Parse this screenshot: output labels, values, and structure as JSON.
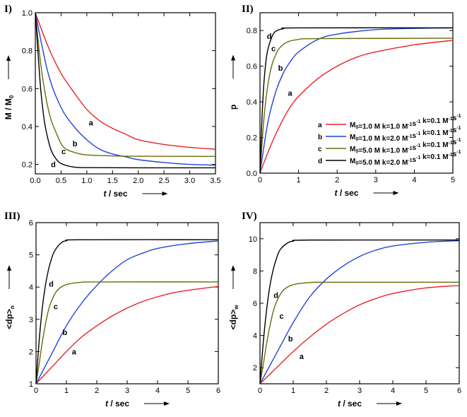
{
  "colors": {
    "a": "#e8232a",
    "b": "#1f45d6",
    "c": "#6b6b0a",
    "d": "#000000",
    "axis": "#000000"
  },
  "chart_data": [
    {
      "panel": "I)",
      "type": "line",
      "xlabel": "t / sec",
      "ylabel": "M / M0",
      "xlim": [
        0,
        3.5
      ],
      "ylim": [
        0.15,
        1.0
      ],
      "xticks": [
        "0.0",
        "0.5",
        "1.0",
        "1.5",
        "2.0",
        "2.5",
        "3.0",
        "3.5"
      ],
      "xtick_values": [
        0,
        0.5,
        1.0,
        1.5,
        2.0,
        2.5,
        3.0,
        3.5
      ],
      "yticks": [
        "0.2",
        "0.4",
        "0.6",
        "0.8",
        "1.0"
      ],
      "ytick_values": [
        0.2,
        0.4,
        0.6,
        0.8,
        1.0
      ],
      "series": [
        {
          "name": "a",
          "x": [
            0,
            0.25,
            0.5,
            0.75,
            1.0,
            1.25,
            1.5,
            1.75,
            2.0,
            2.5,
            3.0,
            3.5
          ],
          "y": [
            1.0,
            0.82,
            0.68,
            0.58,
            0.49,
            0.43,
            0.39,
            0.36,
            0.33,
            0.305,
            0.29,
            0.28
          ]
        },
        {
          "name": "b",
          "x": [
            0,
            0.25,
            0.5,
            0.75,
            1.0,
            1.25,
            1.5,
            1.75,
            2.0,
            2.5,
            3.0,
            3.5
          ],
          "y": [
            1.0,
            0.68,
            0.5,
            0.4,
            0.33,
            0.28,
            0.255,
            0.24,
            0.225,
            0.21,
            0.2,
            0.196
          ]
        },
        {
          "name": "c",
          "x": [
            0,
            0.1,
            0.2,
            0.3,
            0.4,
            0.5,
            0.6,
            0.8,
            1.0,
            1.5,
            2.0,
            3.5
          ],
          "y": [
            1.0,
            0.74,
            0.56,
            0.44,
            0.37,
            0.31,
            0.28,
            0.26,
            0.25,
            0.245,
            0.243,
            0.242
          ]
        },
        {
          "name": "d",
          "x": [
            0,
            0.05,
            0.1,
            0.15,
            0.2,
            0.3,
            0.4,
            0.5,
            0.7,
            1.0,
            2.0,
            3.5
          ],
          "y": [
            1.0,
            0.8,
            0.61,
            0.48,
            0.39,
            0.28,
            0.23,
            0.205,
            0.188,
            0.183,
            0.182,
            0.182
          ]
        }
      ],
      "curve_labels": [
        {
          "name": "a",
          "x": 1.08,
          "y": 0.42
        },
        {
          "name": "b",
          "x": 0.77,
          "y": 0.31
        },
        {
          "name": "c",
          "x": 0.55,
          "y": 0.27
        },
        {
          "name": "d",
          "x": 0.35,
          "y": 0.2
        }
      ]
    },
    {
      "panel": "II)",
      "type": "line",
      "xlabel": "t / sec",
      "ylabel": "p",
      "xlim": [
        0,
        5
      ],
      "ylim": [
        0,
        0.9
      ],
      "xticks": [
        "0",
        "1",
        "2",
        "3",
        "4",
        "5"
      ],
      "xtick_values": [
        0,
        1,
        2,
        3,
        4,
        5
      ],
      "yticks": [
        "0.0",
        "0.2",
        "0.4",
        "0.6",
        "0.8"
      ],
      "ytick_values": [
        0,
        0.2,
        0.4,
        0.6,
        0.8
      ],
      "series": [
        {
          "name": "a",
          "x": [
            0,
            0.25,
            0.5,
            0.75,
            1.0,
            1.5,
            2.0,
            2.5,
            3.0,
            4.0,
            5.0
          ],
          "y": [
            0,
            0.14,
            0.26,
            0.36,
            0.43,
            0.53,
            0.6,
            0.65,
            0.68,
            0.72,
            0.745
          ]
        },
        {
          "name": "b",
          "x": [
            0,
            0.2,
            0.4,
            0.6,
            0.8,
            1.0,
            1.5,
            2.0,
            3.0,
            4.0,
            5.0
          ],
          "y": [
            0,
            0.28,
            0.45,
            0.56,
            0.63,
            0.68,
            0.75,
            0.78,
            0.805,
            0.812,
            0.815
          ]
        },
        {
          "name": "c",
          "x": [
            0,
            0.1,
            0.2,
            0.3,
            0.4,
            0.5,
            0.7,
            1.0,
            1.5,
            5.0
          ],
          "y": [
            0,
            0.3,
            0.49,
            0.6,
            0.66,
            0.7,
            0.735,
            0.75,
            0.755,
            0.757
          ]
        },
        {
          "name": "d",
          "x": [
            0,
            0.05,
            0.1,
            0.15,
            0.2,
            0.3,
            0.4,
            0.6,
            1.0,
            5.0
          ],
          "y": [
            0,
            0.3,
            0.5,
            0.62,
            0.69,
            0.76,
            0.795,
            0.81,
            0.815,
            0.815
          ]
        }
      ],
      "curve_labels": [
        {
          "name": "a",
          "x": 0.78,
          "y": 0.45
        },
        {
          "name": "b",
          "x": 0.53,
          "y": 0.59
        },
        {
          "name": "c",
          "x": 0.35,
          "y": 0.7
        },
        {
          "name": "d",
          "x": 0.24,
          "y": 0.77
        }
      ],
      "legend": {
        "position": "bottom-right",
        "entries": [
          {
            "name": "a",
            "text": "M0=1.0 M  k=1.0 M-1s-1 k=0.1 M-1s-1"
          },
          {
            "name": "b",
            "text": "M0=1.0 M  k=2.0 M-1s-1 k=0.1 M-1s-1"
          },
          {
            "name": "c",
            "text": "M0=5.0 M  k=1.0 M-1s-1 k=0.1 M-1s-1"
          },
          {
            "name": "d",
            "text": "M0=5.0 M  k=2.0 M-1s-1 k=0.1 M-1s-1"
          }
        ]
      }
    },
    {
      "panel": "III)",
      "type": "line",
      "xlabel": "t / sec",
      "ylabel": "<dp>n",
      "xlim": [
        0,
        6
      ],
      "ylim": [
        1,
        6
      ],
      "xticks": [
        "0",
        "1",
        "2",
        "3",
        "4",
        "5",
        "6"
      ],
      "xtick_values": [
        0,
        1,
        2,
        3,
        4,
        5,
        6
      ],
      "yticks": [
        "1",
        "2",
        "3",
        "4",
        "5",
        "6"
      ],
      "ytick_values": [
        1,
        2,
        3,
        4,
        5,
        6
      ],
      "series": [
        {
          "name": "a",
          "x": [
            0,
            0.5,
            1.0,
            1.5,
            2.0,
            2.5,
            3.0,
            3.5,
            4.0,
            4.5,
            5.0,
            6.0
          ],
          "y": [
            1.0,
            1.5,
            2.0,
            2.45,
            2.8,
            3.1,
            3.35,
            3.55,
            3.7,
            3.82,
            3.9,
            4.02
          ]
        },
        {
          "name": "b",
          "x": [
            0,
            0.5,
            1.0,
            1.5,
            2.0,
            2.5,
            3.0,
            3.5,
            4.0,
            5.0,
            6.0
          ],
          "y": [
            1.0,
            1.9,
            2.8,
            3.5,
            4.05,
            4.5,
            4.85,
            5.05,
            5.2,
            5.35,
            5.43
          ]
        },
        {
          "name": "c",
          "x": [
            0,
            0.1,
            0.2,
            0.3,
            0.4,
            0.5,
            0.7,
            1.0,
            1.5,
            2.0,
            6.0
          ],
          "y": [
            1.0,
            1.6,
            2.25,
            2.8,
            3.25,
            3.55,
            3.9,
            4.08,
            4.15,
            4.16,
            4.16
          ]
        },
        {
          "name": "d",
          "x": [
            0,
            0.1,
            0.2,
            0.3,
            0.4,
            0.5,
            0.6,
            0.8,
            1.0,
            1.5,
            6.0
          ],
          "y": [
            1.0,
            2.3,
            3.3,
            4.0,
            4.5,
            4.85,
            5.1,
            5.35,
            5.44,
            5.47,
            5.47
          ]
        }
      ],
      "curve_labels": [
        {
          "name": "a",
          "x": 1.25,
          "y": 2.0
        },
        {
          "name": "b",
          "x": 0.95,
          "y": 2.6
        },
        {
          "name": "c",
          "x": 0.65,
          "y": 3.4
        },
        {
          "name": "d",
          "x": 0.5,
          "y": 4.1
        }
      ]
    },
    {
      "panel": "IV)",
      "type": "line",
      "xlabel": "t / sec",
      "ylabel": "<dp>w",
      "xlim": [
        0,
        6
      ],
      "ylim": [
        1,
        11
      ],
      "xticks": [
        "0",
        "1",
        "2",
        "3",
        "4",
        "5",
        "6"
      ],
      "xtick_values": [
        0,
        1,
        2,
        3,
        4,
        5,
        6
      ],
      "yticks": [
        "2",
        "4",
        "6",
        "8",
        "10"
      ],
      "ytick_values": [
        2,
        4,
        6,
        8,
        10
      ],
      "series": [
        {
          "name": "a",
          "x": [
            0,
            0.5,
            1.0,
            1.5,
            2.0,
            2.5,
            3.0,
            3.5,
            4.0,
            5.0,
            6.0
          ],
          "y": [
            1.0,
            2.0,
            3.0,
            3.9,
            4.7,
            5.35,
            5.9,
            6.3,
            6.6,
            6.95,
            7.1
          ]
        },
        {
          "name": "b",
          "x": [
            0,
            0.5,
            1.0,
            1.5,
            2.0,
            2.5,
            3.0,
            3.5,
            4.0,
            5.0,
            6.0
          ],
          "y": [
            1.0,
            2.9,
            4.8,
            6.4,
            7.5,
            8.3,
            8.9,
            9.3,
            9.55,
            9.78,
            9.88
          ]
        },
        {
          "name": "c",
          "x": [
            0,
            0.1,
            0.2,
            0.3,
            0.4,
            0.5,
            0.7,
            1.0,
            1.5,
            2.0,
            6.0
          ],
          "y": [
            1.0,
            2.2,
            3.5,
            4.6,
            5.5,
            6.1,
            6.8,
            7.15,
            7.28,
            7.3,
            7.3
          ]
        },
        {
          "name": "d",
          "x": [
            0,
            0.1,
            0.2,
            0.3,
            0.4,
            0.5,
            0.6,
            0.8,
            1.0,
            1.5,
            6.0
          ],
          "y": [
            1.0,
            3.6,
            5.6,
            7.1,
            8.1,
            8.8,
            9.3,
            9.7,
            9.85,
            9.92,
            9.92
          ]
        }
      ],
      "curve_labels": [
        {
          "name": "a",
          "x": 1.25,
          "y": 2.7
        },
        {
          "name": "b",
          "x": 0.92,
          "y": 3.8
        },
        {
          "name": "c",
          "x": 0.65,
          "y": 5.2
        },
        {
          "name": "d",
          "x": 0.48,
          "y": 6.5
        }
      ]
    }
  ]
}
